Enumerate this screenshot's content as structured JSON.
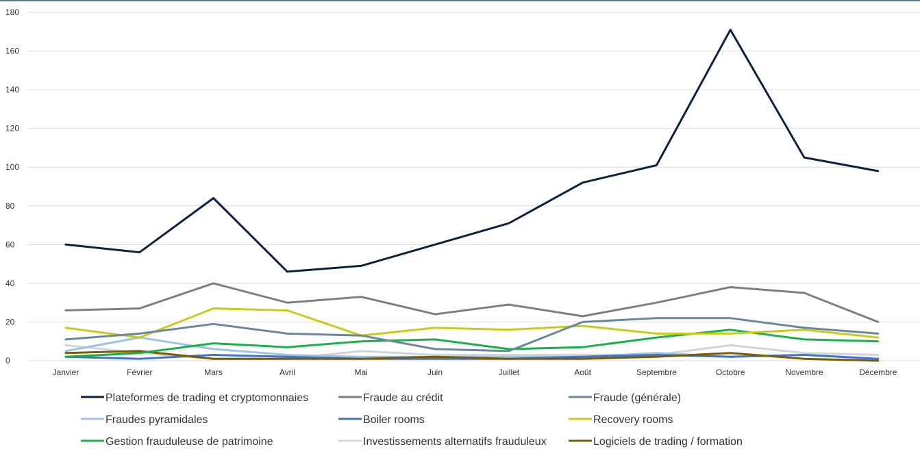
{
  "chart_data": {
    "type": "line",
    "categories": [
      "Janvier",
      "Février",
      "Mars",
      "Avril",
      "Mai",
      "Juin",
      "Juillet",
      "Août",
      "Septembre",
      "Octobre",
      "Novembre",
      "Décembre"
    ],
    "ylim": [
      0,
      180
    ],
    "yticks": [
      0,
      20,
      40,
      60,
      80,
      100,
      120,
      140,
      160,
      180
    ],
    "grid": true,
    "legend_position": "bottom",
    "series": [
      {
        "name": "Plateformes de trading et cryptomonnaies",
        "color": "#0d2240",
        "values": [
          60,
          56,
          84,
          46,
          49,
          60,
          71,
          92,
          101,
          171,
          105,
          98
        ]
      },
      {
        "name": "Fraude au crédit",
        "color": "#7f7f7f",
        "values": [
          26,
          27,
          40,
          30,
          33,
          24,
          29,
          23,
          30,
          38,
          35,
          20
        ]
      },
      {
        "name": "Fraude (générale)",
        "color": "#6a8899",
        "values": [
          11,
          14,
          19,
          14,
          13,
          6,
          5,
          20,
          22,
          22,
          17,
          14
        ]
      },
      {
        "name": "Fraudes pyramidales",
        "color": "#9dc3e6",
        "values": [
          5,
          12,
          6,
          3,
          2,
          2,
          2,
          2,
          4,
          2,
          3,
          1
        ]
      },
      {
        "name": "Boiler rooms",
        "color": "#4472c4",
        "values": [
          2,
          1,
          3,
          2,
          1,
          1,
          1,
          2,
          3,
          2,
          3,
          1
        ]
      },
      {
        "name": "Recovery rooms",
        "color": "#c5cc1a",
        "values": [
          17,
          12,
          27,
          26,
          13,
          17,
          16,
          18,
          14,
          14,
          16,
          12
        ]
      },
      {
        "name": "Gestion frauduleuse de patrimoine",
        "color": "#19b04b",
        "values": [
          2,
          4,
          9,
          7,
          10,
          11,
          6,
          7,
          12,
          16,
          11,
          10
        ]
      },
      {
        "name": "Investissements alternatifs frauduleux",
        "color": "#d0d5db",
        "values": [
          8,
          4,
          1,
          1,
          5,
          3,
          3,
          3,
          3,
          8,
          4,
          3
        ]
      },
      {
        "name": "Logiciels de trading / formation",
        "color": "#7a5c00",
        "values": [
          4,
          5,
          1,
          1,
          1,
          2,
          1,
          1,
          2,
          4,
          1,
          0
        ]
      }
    ]
  }
}
